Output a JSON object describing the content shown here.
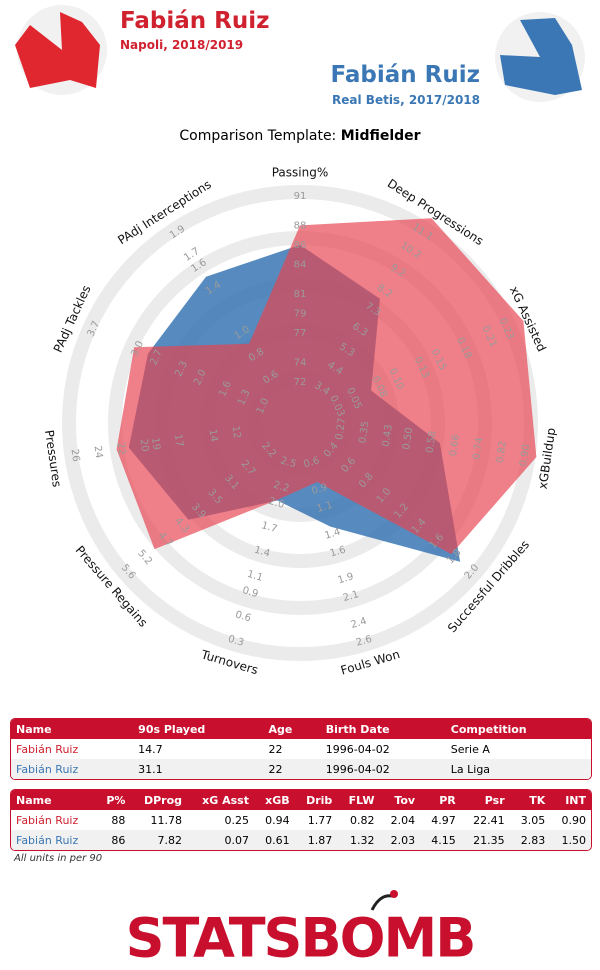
{
  "header": {
    "left": {
      "name": "Fabián Ruiz",
      "team": "Napoli, 2018/2019"
    },
    "right": {
      "name": "Fabián Ruiz",
      "team": "Real Betis, 2017/2018"
    }
  },
  "template": {
    "label": "Comparison Template:",
    "value": "Midfielder"
  },
  "chart_data": {
    "type": "radar",
    "axes": [
      {
        "name": "Passing%",
        "lim": [
          72,
          91
        ],
        "ticks": [
          72,
          74,
          77,
          79,
          81,
          84,
          86,
          88,
          91
        ]
      },
      {
        "name": "Deep Progressions",
        "lim": [
          3.4,
          11.1
        ],
        "ticks": [
          3.4,
          4.4,
          5.3,
          6.3,
          7.3,
          8.2,
          9.2,
          10.2,
          11.1
        ]
      },
      {
        "name": "xG Assisted",
        "lim": [
          0.03,
          0.23
        ],
        "ticks": [
          0.03,
          0.05,
          0.08,
          {
            "value": 0.1,
            "label": "0.10"
          },
          0.13,
          0.15,
          0.18,
          0.21,
          0.23
        ]
      },
      {
        "name": "xGBuildup",
        "lim": [
          0.27,
          0.9
        ],
        "ticks": [
          0.27,
          0.35,
          0.43,
          {
            "value": 0.5,
            "label": "0.50"
          },
          0.58,
          0.66,
          0.74,
          0.82,
          {
            "value": 0.9,
            "label": "0.90"
          }
        ]
      },
      {
        "name": "Successful Dribbles",
        "lim": [
          0.4,
          2
        ],
        "ticks": [
          0.4,
          0.6,
          0.8,
          {
            "value": 1,
            "label": "1.0"
          },
          1.2,
          1.4,
          1.6,
          1.8,
          {
            "value": 2,
            "label": "2.0"
          }
        ]
      },
      {
        "name": "Fouls Won",
        "lim": [
          0.6,
          2.6
        ],
        "ticks": [
          0.6,
          0.9,
          1.1,
          1.4,
          1.6,
          1.9,
          2.1,
          2.4,
          2.6
        ]
      },
      {
        "name": "Turnovers",
        "lim": [
          2.5,
          0.3
        ],
        "ticks": [
          2.5,
          2.2,
          {
            "value": 2,
            "label": "2.0"
          },
          1.7,
          1.4,
          1.1,
          0.9,
          0.6,
          0.3
        ]
      },
      {
        "name": "Pressure Regains",
        "lim": [
          2.2,
          5.6
        ],
        "ticks": [
          2.2,
          2.7,
          3.1,
          3.5,
          3.9,
          4.3,
          4.7,
          5.2,
          5.6
        ]
      },
      {
        "name": "Pressures",
        "lim": [
          10,
          26
        ],
        "ticks": [
          12,
          14,
          17,
          19,
          20,
          22,
          24,
          26
        ]
      },
      {
        "name": "PAdj Tackles",
        "lim": [
          1,
          3.7
        ],
        "ticks": [
          {
            "value": 1,
            "label": "1.0"
          },
          1.3,
          1.6,
          {
            "value": 2,
            "label": "2.0"
          },
          2.3,
          2.7,
          {
            "value": 3,
            "label": "3.0"
          },
          3.7
        ]
      },
      {
        "name": "PAdj Interceptions",
        "lim": [
          0.5,
          1.9
        ],
        "ticks": [
          0.6,
          0.8,
          {
            "value": 1,
            "label": "1.0"
          },
          1.4,
          1.6,
          1.7,
          1.9
        ]
      }
    ],
    "series": [
      {
        "name": "Fabián Ruiz",
        "color": "#3a77b4",
        "values": [
          86,
          7.82,
          0.07,
          0.61,
          1.87,
          1.32,
          2.03,
          4.15,
          21.35,
          2.83,
          1.5
        ]
      },
      {
        "name": "Fabián Ruiz",
        "color": "#e8424f",
        "values": [
          88,
          11.78,
          0.25,
          0.94,
          1.77,
          0.82,
          2.04,
          4.97,
          22.41,
          3.05,
          0.9
        ]
      }
    ]
  },
  "tables": [
    {
      "columns": [
        "Name",
        "90s Played",
        "Age",
        "Birth Date",
        "Competition"
      ],
      "rows": [
        [
          "Fabián Ruiz",
          "14.7",
          "22",
          "1996-04-02",
          "Serie A"
        ],
        [
          "Fabián Ruiz",
          "31.1",
          "22",
          "1996-04-02",
          "La Liga"
        ]
      ]
    },
    {
      "columns": [
        "Name",
        "P%",
        "DProg",
        "xG Asst",
        "xGB",
        "Drib",
        "FLW",
        "Tov",
        "PR",
        "Psr",
        "TK",
        "INT"
      ],
      "rows": [
        [
          "Fabián Ruiz",
          "88",
          "11.78",
          "0.25",
          "0.94",
          "1.77",
          "0.82",
          "2.04",
          "4.97",
          "22.41",
          "3.05",
          "0.90"
        ],
        [
          "Fabián Ruiz",
          "86",
          "7.82",
          "0.07",
          "0.61",
          "1.87",
          "1.32",
          "2.03",
          "4.15",
          "21.35",
          "2.83",
          "1.50"
        ]
      ]
    }
  ],
  "footnote": "All units in per 90",
  "logo": "STATSBOMB"
}
